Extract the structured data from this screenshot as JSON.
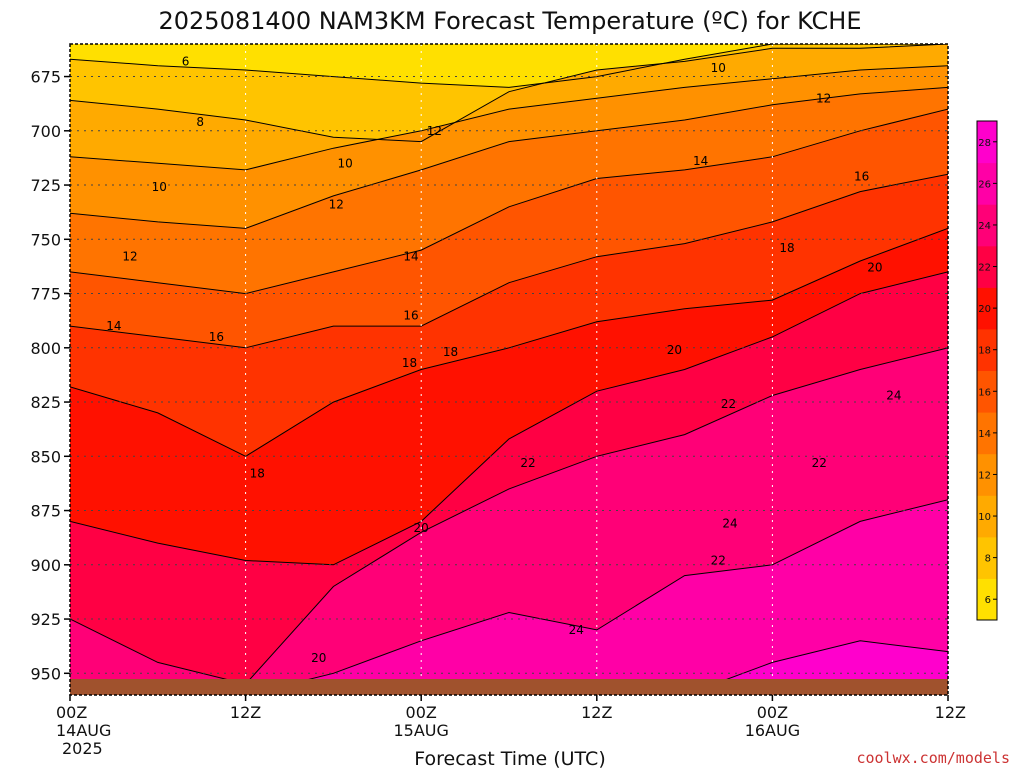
{
  "title": "2025081400 NAM3KM Forecast Temperature (ºC) for KCHE",
  "credit": "coolwx.com/models",
  "credit_color": "#cc3333",
  "ground_color": "#a0522d",
  "chart_data": {
    "type": "heatmap",
    "title": "2025081400 NAM3KM Forecast Temperature (ºC) for KCHE",
    "xlabel": "Forecast Time (UTC)",
    "ylabel": "",
    "x_hours": [
      0,
      6,
      12,
      18,
      24,
      30,
      36,
      42,
      48,
      54,
      60
    ],
    "x_ticks": [
      {
        "hour": 0,
        "label": "00Z",
        "date": "14AUG",
        "year": "2025"
      },
      {
        "hour": 12,
        "label": "12Z",
        "date": "",
        "year": ""
      },
      {
        "hour": 24,
        "label": "00Z",
        "date": "15AUG",
        "year": ""
      },
      {
        "hour": 36,
        "label": "12Z",
        "date": "",
        "year": ""
      },
      {
        "hour": 48,
        "label": "00Z",
        "date": "16AUG",
        "year": ""
      },
      {
        "hour": 60,
        "label": "12Z",
        "date": "",
        "year": ""
      }
    ],
    "xlim": [
      0,
      60
    ],
    "ylim": [
      660,
      960
    ],
    "y_inverted": true,
    "y_ticks": [
      675,
      700,
      725,
      750,
      775,
      800,
      825,
      850,
      875,
      900,
      925,
      950
    ],
    "grid": true,
    "levels": [
      6,
      8,
      10,
      12,
      14,
      16,
      18,
      20,
      22,
      24,
      26,
      28
    ],
    "colors": [
      "#ffe000",
      "#ffc400",
      "#ffaa00",
      "#ff9100",
      "#ff7400",
      "#ff5500",
      "#ff3300",
      "#ff1100",
      "#ff0044",
      "#ff0077",
      "#ff00a6",
      "#ff00cc"
    ],
    "colorbar_labels": [
      "6",
      "8",
      "10",
      "12",
      "14",
      "16",
      "18",
      "20",
      "22",
      "24",
      "26",
      "28"
    ],
    "isotherms": [
      {
        "level": 6,
        "depth": [
          667,
          670,
          672,
          675,
          678,
          680,
          675,
          667,
          660,
          660,
          660
        ]
      },
      {
        "level": 8,
        "depth": [
          686,
          690,
          695,
          703,
          705,
          682,
          672,
          668,
          662,
          662,
          660
        ]
      },
      {
        "level": 10,
        "depth": [
          712,
          715,
          718,
          708,
          700,
          690,
          685,
          680,
          676,
          672,
          670
        ]
      },
      {
        "level": 12,
        "depth": [
          738,
          742,
          745,
          730,
          718,
          705,
          700,
          695,
          688,
          683,
          680
        ]
      },
      {
        "level": 14,
        "depth": [
          765,
          770,
          775,
          765,
          755,
          735,
          722,
          718,
          712,
          700,
          690
        ]
      },
      {
        "level": 16,
        "depth": [
          790,
          795,
          800,
          790,
          790,
          770,
          758,
          752,
          742,
          728,
          720
        ]
      },
      {
        "level": 18,
        "depth": [
          818,
          830,
          850,
          825,
          810,
          800,
          788,
          782,
          778,
          760,
          745
        ]
      },
      {
        "level": 20,
        "depth": [
          880,
          890,
          898,
          900,
          880,
          842,
          820,
          810,
          795,
          775,
          765
        ]
      },
      {
        "level": 22,
        "depth": [
          925,
          945,
          955,
          910,
          885,
          865,
          850,
          840,
          822,
          810,
          800
        ]
      },
      {
        "level": 24,
        "depth": [
          960,
          960,
          960,
          950,
          935,
          922,
          930,
          905,
          900,
          880,
          870
        ]
      },
      {
        "level": 26,
        "depth": [
          960,
          960,
          960,
          960,
          960,
          960,
          960,
          960,
          945,
          935,
          940
        ]
      }
    ],
    "contour_labels": [
      {
        "text": "6",
        "hour": 7.9,
        "depth": 668
      },
      {
        "text": "8",
        "hour": 8.9,
        "depth": 696
      },
      {
        "text": "10",
        "hour": 6.1,
        "depth": 726
      },
      {
        "text": "12",
        "hour": 4.1,
        "depth": 758
      },
      {
        "text": "14",
        "hour": 3.0,
        "depth": 790
      },
      {
        "text": "16",
        "hour": 10.0,
        "depth": 795
      },
      {
        "text": "18",
        "hour": 12.8,
        "depth": 858
      },
      {
        "text": "20",
        "hour": 17.0,
        "depth": 943
      },
      {
        "text": "10",
        "hour": 18.8,
        "depth": 715
      },
      {
        "text": "12",
        "hour": 18.2,
        "depth": 734
      },
      {
        "text": "12",
        "hour": 24.9,
        "depth": 700
      },
      {
        "text": "14",
        "hour": 23.3,
        "depth": 758
      },
      {
        "text": "16",
        "hour": 23.3,
        "depth": 785
      },
      {
        "text": "18",
        "hour": 23.2,
        "depth": 807
      },
      {
        "text": "18",
        "hour": 26.0,
        "depth": 802
      },
      {
        "text": "20",
        "hour": 24.0,
        "depth": 883
      },
      {
        "text": "22",
        "hour": 31.3,
        "depth": 853
      },
      {
        "text": "24",
        "hour": 34.6,
        "depth": 930
      },
      {
        "text": "10",
        "hour": 44.3,
        "depth": 671
      },
      {
        "text": "12",
        "hour": 51.5,
        "depth": 685
      },
      {
        "text": "14",
        "hour": 43.1,
        "depth": 714
      },
      {
        "text": "16",
        "hour": 54.1,
        "depth": 721
      },
      {
        "text": "18",
        "hour": 49.0,
        "depth": 754
      },
      {
        "text": "20",
        "hour": 41.3,
        "depth": 801
      },
      {
        "text": "20",
        "hour": 55.0,
        "depth": 763
      },
      {
        "text": "22",
        "hour": 45.0,
        "depth": 826
      },
      {
        "text": "22",
        "hour": 51.2,
        "depth": 853
      },
      {
        "text": "22",
        "hour": 44.3,
        "depth": 898
      },
      {
        "text": "24",
        "hour": 45.1,
        "depth": 881
      },
      {
        "text": "24",
        "hour": 56.3,
        "depth": 822
      }
    ]
  }
}
